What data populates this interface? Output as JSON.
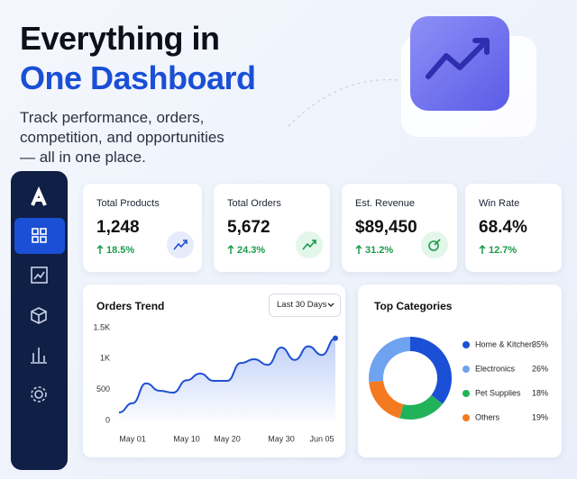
{
  "header": {
    "title_line1": "Everything in",
    "title_line2": "One Dashboard",
    "subtitle_lines": [
      "Track performance, orders,",
      "competition, and opportunities",
      "— all in one place."
    ]
  },
  "kpis": [
    {
      "label": "Total Products",
      "value": "1,248",
      "change": "18.5%"
    },
    {
      "label": "Total Orders",
      "value": "5,672",
      "change": "24.3%"
    },
    {
      "label": "Est. Revenue",
      "value": "$89,450",
      "change": "31.2%"
    },
    {
      "label": "Win Rate",
      "value": "68.4%",
      "change": "12.7%"
    }
  ],
  "chart_data": [
    {
      "type": "line",
      "title": "Orders Trend",
      "dropdown": "Last 30 Days",
      "color": "#1f4fd1",
      "categories": [
        null,
        "May 01",
        null,
        null,
        null,
        "May 10",
        null,
        null,
        "May 20",
        null,
        null,
        null,
        "May 30",
        null,
        null,
        "Jun 05",
        null
      ],
      "values": [
        130,
        280,
        600,
        480,
        450,
        650,
        760,
        640,
        640,
        930,
        990,
        900,
        1180,
        980,
        1200,
        1060,
        1330
      ],
      "ylim": [
        0,
        1500
      ],
      "yticks": [
        0,
        500,
        {
          "value": 1000,
          "label": "1K"
        },
        {
          "value": 1500,
          "label": "1.5K"
        }
      ]
    },
    {
      "type": "donut",
      "title": "Top Categories",
      "categories": [
        "Home & Kitchen",
        "Electronics",
        "Pet Supplies",
        "Others"
      ],
      "values": [
        35,
        26,
        18,
        19
      ],
      "value_labels": [
        "35%",
        "26%",
        "18%",
        "19%"
      ],
      "colors": [
        "#1a4fd6",
        "#6fa3f0",
        "#22b35a",
        "#f47a1f"
      ]
    }
  ]
}
